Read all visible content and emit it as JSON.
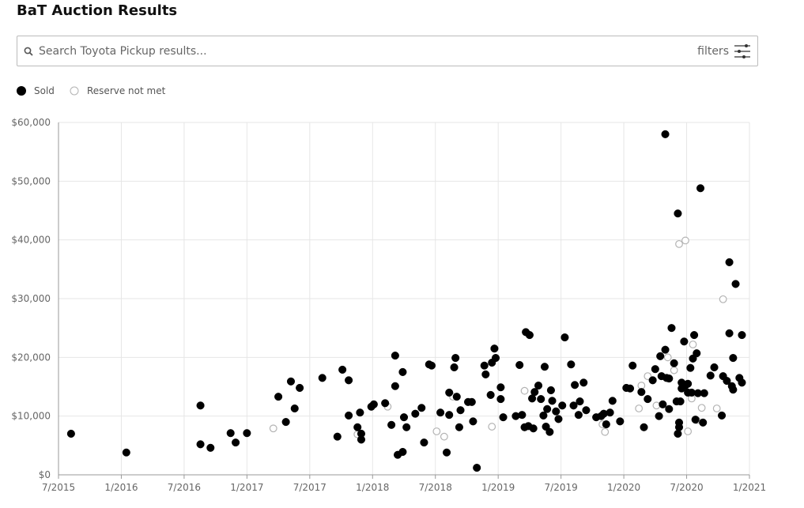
{
  "header": {
    "title": "BaT Auction Results"
  },
  "search": {
    "placeholder": "Search Toyota Pickup results...",
    "filters_label": "filters"
  },
  "chart_data": {
    "type": "scatter",
    "xlim": [
      2015.5,
      2021.0
    ],
    "xticks": [
      {
        "value": 2015.5,
        "label": "7/2015"
      },
      {
        "value": 2016.0,
        "label": "1/2016"
      },
      {
        "value": 2016.5,
        "label": "7/2016"
      },
      {
        "value": 2017.0,
        "label": "1/2017"
      },
      {
        "value": 2017.5,
        "label": "7/2017"
      },
      {
        "value": 2018.0,
        "label": "1/2018"
      },
      {
        "value": 2018.5,
        "label": "7/2018"
      },
      {
        "value": 2019.0,
        "label": "1/2019"
      },
      {
        "value": 2019.5,
        "label": "7/2019"
      },
      {
        "value": 2020.0,
        "label": "1/2020"
      },
      {
        "value": 2020.5,
        "label": "7/2020"
      },
      {
        "value": 2021.0,
        "label": "1/2021"
      }
    ],
    "ylim": [
      0,
      60000
    ],
    "yticks": [
      {
        "value": 0,
        "label": "$0"
      },
      {
        "value": 10000,
        "label": "$10,000"
      },
      {
        "value": 20000,
        "label": "$20,000"
      },
      {
        "value": 30000,
        "label": "$30,000"
      },
      {
        "value": 40000,
        "label": "$40,000"
      },
      {
        "value": 50000,
        "label": "$50,000"
      },
      {
        "value": 60000,
        "label": "$60,000"
      }
    ],
    "grid": true,
    "series": [
      {
        "name": "Sold",
        "color": "#000000",
        "marker": "filled",
        "x": [
          2015.6,
          2016.04,
          2016.63,
          2016.63,
          2016.71,
          2016.87,
          2016.91,
          2017.0,
          2017.25,
          2017.31,
          2017.35,
          2017.38,
          2017.42,
          2017.6,
          2017.72,
          2017.76,
          2017.81,
          2017.81,
          2017.88,
          2017.9,
          2017.91,
          2017.91,
          2017.99,
          2018.01,
          2018.1,
          2018.15,
          2018.18,
          2018.18,
          2018.2,
          2018.24,
          2018.24,
          2018.25,
          2018.27,
          2018.34,
          2018.39,
          2018.41,
          2018.45,
          2018.47,
          2018.54,
          2018.59,
          2018.61,
          2018.61,
          2018.65,
          2018.66,
          2018.67,
          2018.69,
          2018.7,
          2018.76,
          2018.79,
          2018.8,
          2018.83,
          2018.89,
          2018.9,
          2018.94,
          2018.95,
          2018.97,
          2018.98,
          2019.02,
          2019.02,
          2019.04,
          2019.14,
          2019.17,
          2019.19,
          2019.21,
          2019.22,
          2019.24,
          2019.25,
          2019.27,
          2019.28,
          2019.29,
          2019.32,
          2019.34,
          2019.36,
          2019.37,
          2019.38,
          2019.39,
          2019.41,
          2019.42,
          2019.43,
          2019.46,
          2019.48,
          2019.51,
          2019.53,
          2019.58,
          2019.6,
          2019.61,
          2019.64,
          2019.65,
          2019.68,
          2019.7,
          2019.78,
          2019.82,
          2019.84,
          2019.86,
          2019.89,
          2019.91,
          2019.97,
          2020.02,
          2020.05,
          2020.07,
          2020.14,
          2020.16,
          2020.19,
          2020.23,
          2020.25,
          2020.28,
          2020.29,
          2020.3,
          2020.31,
          2020.33,
          2020.33,
          2020.34,
          2020.36,
          2020.36,
          2020.38,
          2020.4,
          2020.42,
          2020.43,
          2020.43,
          2020.44,
          2020.44,
          2020.45,
          2020.46,
          2020.46,
          2020.48,
          2020.49,
          2020.51,
          2020.51,
          2020.53,
          2020.54,
          2020.55,
          2020.56,
          2020.57,
          2020.58,
          2020.59,
          2020.61,
          2020.63,
          2020.64,
          2020.69,
          2020.72,
          2020.78,
          2020.79,
          2020.82,
          2020.84,
          2020.84,
          2020.86,
          2020.87,
          2020.87,
          2020.89,
          2020.92,
          2020.94,
          2020.94
        ],
        "values": [
          7000,
          3800,
          11800,
          5200,
          4600,
          7100,
          5500,
          7100,
          13300,
          9000,
          15900,
          11300,
          14800,
          16500,
          6500,
          17900,
          16100,
          10100,
          8100,
          10600,
          7000,
          6000,
          11600,
          12000,
          12200,
          8500,
          15100,
          20300,
          3400,
          3900,
          17500,
          9800,
          8100,
          10400,
          11400,
          5500,
          18800,
          18600,
          10600,
          3800,
          14000,
          10200,
          18300,
          19900,
          13300,
          8100,
          11000,
          12400,
          12400,
          9100,
          1200,
          18600,
          17100,
          13600,
          19100,
          21500,
          19900,
          12900,
          14900,
          9800,
          10000,
          18700,
          10200,
          8100,
          24300,
          8300,
          23800,
          13000,
          7900,
          14100,
          15200,
          12900,
          10100,
          18400,
          8200,
          11200,
          7300,
          14400,
          12600,
          10800,
          9500,
          11800,
          23400,
          18800,
          11800,
          15300,
          10200,
          12500,
          15700,
          11000,
          9800,
          10000,
          10400,
          8600,
          10600,
          12600,
          9100,
          14800,
          14700,
          18600,
          14100,
          8100,
          12900,
          16100,
          18000,
          10000,
          20200,
          16800,
          12000,
          58000,
          21300,
          16500,
          16400,
          11200,
          25000,
          19000,
          12500,
          7000,
          44500,
          8100,
          8900,
          12500,
          14700,
          15700,
          22700,
          15200,
          14000,
          15500,
          18200,
          14000,
          19800,
          23800,
          9400,
          20700,
          13900,
          48800,
          8900,
          13900,
          16900,
          18300,
          10100,
          16800,
          16000,
          24100,
          36200,
          15100,
          14500,
          19900,
          32500,
          16500,
          15700,
          23800
        ]
      },
      {
        "name": "Reserve not met",
        "color": "#b3b3b3",
        "marker": "hollow",
        "x": [
          2017.21,
          2017.88,
          2018.12,
          2018.51,
          2018.57,
          2018.64,
          2018.95,
          2019.21,
          2019.85,
          2019.83,
          2020.12,
          2020.14,
          2020.19,
          2020.26,
          2020.35,
          2020.4,
          2020.44,
          2020.49,
          2020.51,
          2020.54,
          2020.55,
          2020.58,
          2020.62,
          2020.74,
          2020.79
        ],
        "values": [
          7900,
          6900,
          11600,
          7400,
          6500,
          13300,
          8200,
          14300,
          7300,
          8600,
          11300,
          15200,
          16800,
          11800,
          20000,
          17800,
          39300,
          39900,
          7400,
          13000,
          22200,
          9300,
          11400,
          11300,
          29900
        ]
      }
    ]
  }
}
